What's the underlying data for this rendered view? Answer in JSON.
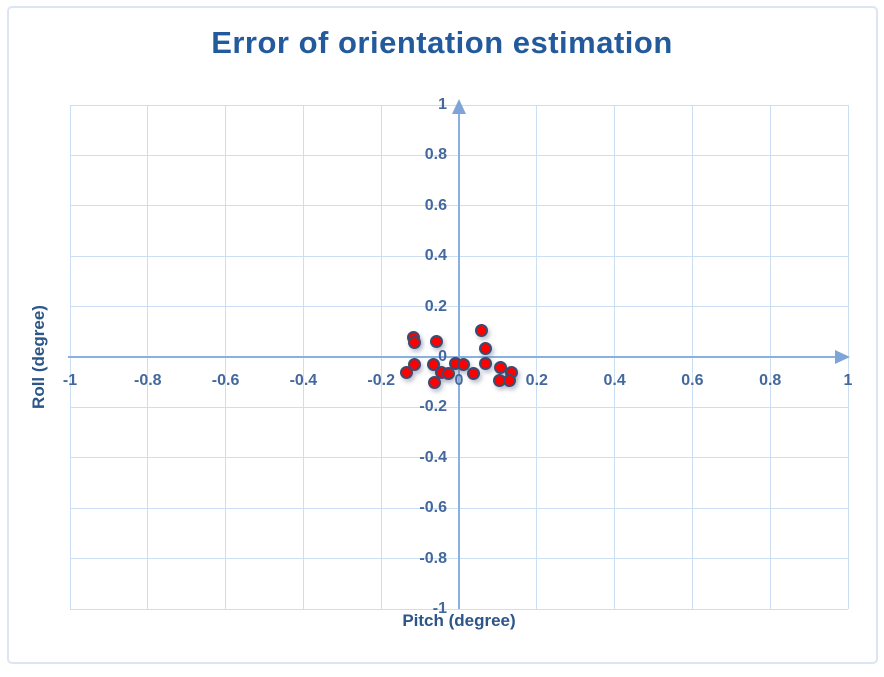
{
  "chart_data": {
    "type": "scatter",
    "title": "Error of orientation estimation",
    "xlabel": "Pitch (degree)",
    "ylabel": "Roll (degree)",
    "xlim": [
      -1,
      1
    ],
    "ylim": [
      -1,
      1
    ],
    "x_ticks": [
      -1,
      -0.8,
      -0.6,
      -0.4,
      -0.2,
      0,
      0.2,
      0.4,
      0.6,
      0.8,
      1
    ],
    "y_ticks": [
      1,
      0.8,
      0.6,
      0.4,
      0.2,
      0,
      -0.2,
      -0.4,
      -0.6,
      -0.8,
      -1
    ],
    "x_tick_labels": [
      "-1",
      "-0.8",
      "-0.6",
      "-0.4",
      "-0.2",
      "0",
      "0.2",
      "0.4",
      "0.6",
      "0.8",
      "1"
    ],
    "y_tick_labels": [
      "1",
      "0.8",
      "0.6",
      "0.4",
      "0.2",
      "0",
      "-0.2",
      "-0.4",
      "-0.6",
      "-0.8",
      "-1"
    ],
    "grid": true,
    "legend": false,
    "axis_arrows": true,
    "series": [
      {
        "name": "orientation error",
        "marker": "circle",
        "points": [
          [
            -0.116,
            0.079
          ],
          [
            -0.114,
            0.056
          ],
          [
            -0.058,
            0.06
          ],
          [
            -0.114,
            -0.028
          ],
          [
            -0.135,
            -0.063
          ],
          [
            -0.066,
            -0.028
          ],
          [
            -0.044,
            -0.063
          ],
          [
            -0.028,
            -0.067
          ],
          [
            -0.063,
            -0.101
          ],
          [
            -0.01,
            -0.026
          ],
          [
            0.012,
            -0.03
          ],
          [
            0.036,
            -0.065
          ],
          [
            0.059,
            0.105
          ],
          [
            0.068,
            0.032
          ],
          [
            0.068,
            -0.026
          ],
          [
            0.107,
            -0.042
          ],
          [
            0.136,
            -0.062
          ],
          [
            0.105,
            -0.095
          ],
          [
            0.129,
            -0.095
          ]
        ]
      }
    ]
  },
  "colors": {
    "title": "#235a9c",
    "axis_title": "#2c5588",
    "tick": "#44689d",
    "gridline": "#cbdef2",
    "axis": "#8ab0df",
    "arrow": "#7fa5d8",
    "marker_fill": "#ff0000",
    "marker_border": "#3e4a6e",
    "frame": "#dce5f1"
  }
}
